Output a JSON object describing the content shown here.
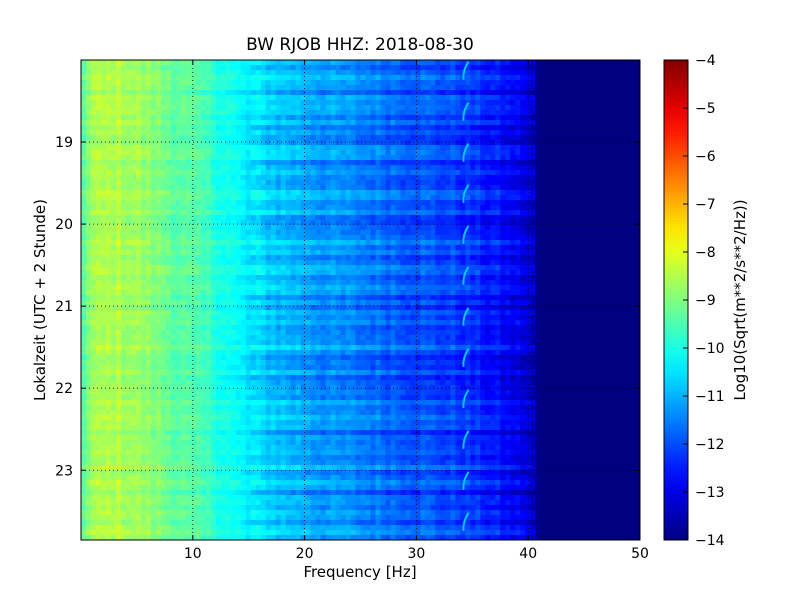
{
  "chart_data": {
    "type": "heatmap",
    "title": "BW RJOB HHZ: 2018-08-30",
    "xlabel": "Frequency [Hz]",
    "ylabel": "Lokalzeit (UTC + 2 Stunde)",
    "xlim": [
      0,
      50
    ],
    "ylim": [
      18.0,
      23.85
    ],
    "y_inverted": true,
    "x_ticks": [
      10,
      20,
      30,
      40,
      50
    ],
    "x_tick_labels": [
      "10",
      "20",
      "30",
      "40",
      "50"
    ],
    "y_ticks": [
      19,
      20,
      21,
      22,
      23
    ],
    "y_tick_labels": [
      "19",
      "20",
      "21",
      "22",
      "23"
    ],
    "grid": true,
    "colormap": "jet",
    "colorbar": {
      "label": "Log10(Sqrt(m**2/s**2/Hz))",
      "range": [
        -14,
        -4
      ],
      "ticks": [
        -4,
        -5,
        -6,
        -7,
        -8,
        -9,
        -10,
        -11,
        -12,
        -13,
        -14
      ],
      "tick_labels": [
        "−4",
        "−5",
        "−6",
        "−7",
        "−8",
        "−9",
        "−10",
        "−11",
        "−12",
        "−13",
        "−14"
      ]
    },
    "spectral_profile": {
      "frequency_hz": [
        0,
        1,
        3,
        5,
        8,
        12,
        15,
        18,
        22,
        26,
        30,
        34,
        37,
        40,
        41,
        50
      ],
      "log10_amplitude": [
        -9.4,
        -8.7,
        -8.5,
        -8.7,
        -9.2,
        -9.8,
        -10.5,
        -10.9,
        -11.3,
        -11.6,
        -11.9,
        -12.2,
        -12.6,
        -13.1,
        -14,
        -14
      ]
    },
    "tone_line": {
      "frequency_hz": 34.3,
      "log10_amplitude": -10.8
    }
  }
}
